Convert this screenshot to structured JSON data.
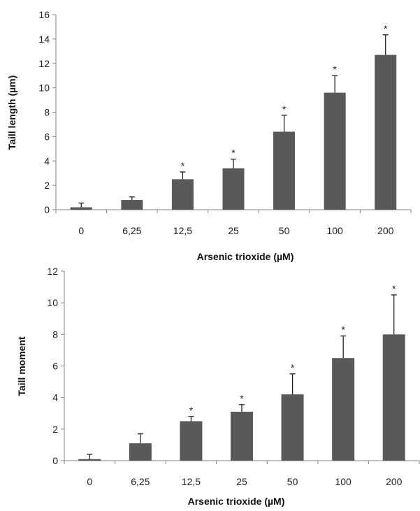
{
  "chart_data": [
    {
      "type": "bar",
      "title": "",
      "xlabel": "Arsenic trioxide (µM)",
      "ylabel": "Taill length (µm)",
      "categories": [
        "0",
        "6,25",
        "12,5",
        "25",
        "50",
        "100",
        "200"
      ],
      "values": [
        0.2,
        0.8,
        2.5,
        3.4,
        6.4,
        9.6,
        12.7
      ],
      "errors": [
        0.35,
        0.25,
        0.6,
        0.75,
        1.35,
        1.4,
        1.65
      ],
      "significance": [
        "",
        "",
        "*",
        "*",
        "*",
        "*",
        "*"
      ],
      "ylim": [
        0,
        16
      ],
      "yticks": [
        0,
        2,
        4,
        6,
        8,
        10,
        12,
        14,
        16
      ],
      "bar_color": "#595959",
      "grid": false,
      "legend": "none"
    },
    {
      "type": "bar",
      "title": "",
      "xlabel": "Arsenic trioxide (µM)",
      "ylabel": "Taill moment",
      "categories": [
        "0",
        "6,25",
        "12,5",
        "25",
        "50",
        "100",
        "200"
      ],
      "values": [
        0.1,
        1.1,
        2.5,
        3.1,
        4.2,
        6.5,
        8.0
      ],
      "errors": [
        0.3,
        0.6,
        0.3,
        0.45,
        1.3,
        1.4,
        2.5
      ],
      "significance": [
        "",
        "",
        "*",
        "*",
        "*",
        "*",
        "*"
      ],
      "ylim": [
        0,
        12
      ],
      "yticks": [
        0,
        2,
        4,
        6,
        8,
        10,
        12
      ],
      "bar_color": "#595959",
      "grid": false,
      "legend": "none"
    }
  ]
}
